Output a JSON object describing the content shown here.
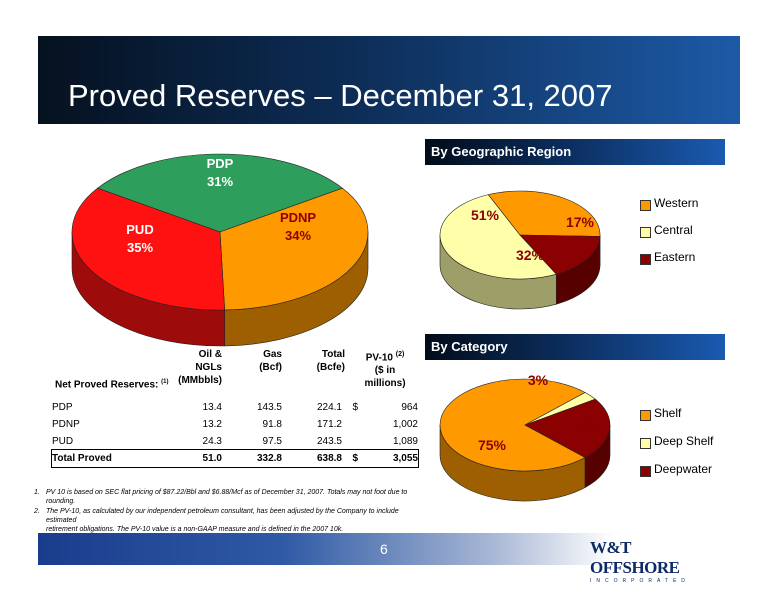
{
  "title": "Proved Reserves – December 31, 2007",
  "page_number": "6",
  "logo": {
    "main": "W&T OFFSHORE",
    "sub": "INCORPORATED"
  },
  "sections": {
    "region": "By Geographic Region",
    "category": "By Category"
  },
  "chart_data": [
    {
      "type": "pie",
      "title": "",
      "categories": [
        "PDP",
        "PDNP",
        "PUD"
      ],
      "values": [
        31,
        34,
        35
      ],
      "labels": [
        "31%",
        "34%",
        "35%"
      ],
      "colors": [
        "#2e9e5c",
        "#ff9900",
        "#ff1111"
      ]
    },
    {
      "type": "pie",
      "title": "By Geographic Region",
      "categories": [
        "Western",
        "Central",
        "Eastern"
      ],
      "values": [
        51,
        32,
        17
      ],
      "labels": [
        "51%",
        "32%",
        "17%"
      ],
      "colors": [
        "#ffffaa",
        "#ff9900",
        "#8b0000"
      ],
      "legend": "right"
    },
    {
      "type": "pie",
      "title": "By Category",
      "categories": [
        "Shelf",
        "Deep Shelf",
        "Deepwater"
      ],
      "values": [
        75,
        3,
        22
      ],
      "labels": [
        "75%",
        "3%",
        "22%"
      ],
      "colors": [
        "#ff9900",
        "#ffffaa",
        "#8b0000"
      ],
      "legend": "right"
    },
    {
      "type": "table",
      "headers": [
        {
          "line1": "Oil & NGLs",
          "line2": "(MMbbls)"
        },
        {
          "line1": "Gas",
          "line2": "(Bcf)"
        },
        {
          "line1": "Total",
          "line2": "(Bcfe)"
        },
        {
          "line1": "PV-10",
          "sup": "(2)",
          "line2": "($ in millions)"
        }
      ],
      "section_label": "Net Proved Reserves:",
      "section_sup": "(1)",
      "rows": [
        {
          "label": "PDP",
          "oil": "13.4",
          "gas": "143.5",
          "total": "224.1",
          "dollar": "$",
          "pv10": "964"
        },
        {
          "label": "PDNP",
          "oil": "13.2",
          "gas": "91.8",
          "total": "171.2",
          "dollar": "",
          "pv10": "1,002"
        },
        {
          "label": "PUD",
          "oil": "24.3",
          "gas": "97.5",
          "total": "243.5",
          "dollar": "",
          "pv10": "1,089"
        }
      ],
      "total_row": {
        "label": "Total Proved",
        "oil": "51.0",
        "gas": "332.8",
        "total": "638.8",
        "dollar": "$",
        "pv10": "3,055"
      }
    }
  ],
  "footnotes": [
    {
      "num": "1.",
      "line1": "PV 10 is based on SEC flat pricing of $87.22/Bbl and $6.88/Mcf as of December 31, 2007.  Totals may not foot due to",
      "line2": "rounding."
    },
    {
      "num": "2.",
      "line1": "The PV-10, as calculated by our independent petroleum consultant, has been adjusted by the Company to include estimated",
      "line2": "retirement obligations.  The PV-10 value is a non-GAAP measure and is defined in the 2007 10k."
    }
  ]
}
